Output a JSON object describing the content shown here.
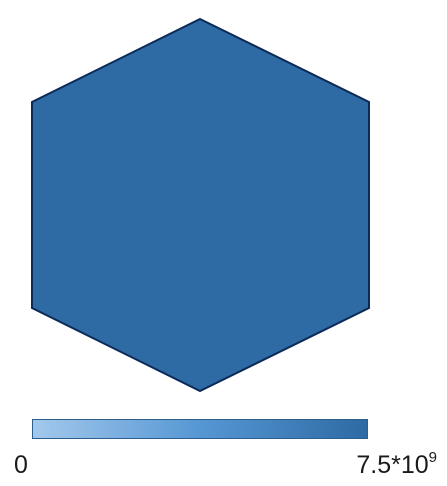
{
  "map": {
    "regions": [
      {
        "name": "",
        "value": 6500000000,
        "fill": "#2e6aa4",
        "stroke": "#0c2a57"
      }
    ]
  },
  "legend": {
    "min_label": "0",
    "max_base": "7.5*10",
    "max_exponent": "9",
    "min_value": 0,
    "max_value": 7500000000,
    "gradient_start": "#a3c8ec",
    "gradient_mid": "#5597d3",
    "gradient_end": "#2e6aa4",
    "border_color": "#2d5f8e"
  }
}
